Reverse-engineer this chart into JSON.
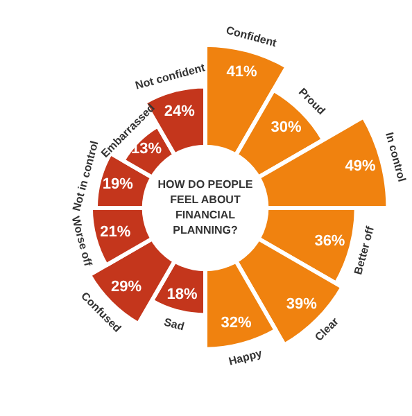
{
  "chart_data": {
    "type": "other",
    "title": "HOW DO PEOPLE FEEL ABOUT FINANCIAL PLANNING?",
    "categories": [
      "Confident",
      "Proud",
      "In control",
      "Better off",
      "Clear",
      "Happy",
      "Sad",
      "Confused",
      "Worse off",
      "Not in control",
      "Embarrassed",
      "Not confident"
    ],
    "values": [
      41,
      30,
      49,
      36,
      39,
      32,
      18,
      29,
      21,
      19,
      13,
      24
    ],
    "value_labels": [
      "41%",
      "30%",
      "49%",
      "36%",
      "39%",
      "32%",
      "18%",
      "29%",
      "21%",
      "19%",
      "13%",
      "24%"
    ],
    "colors": [
      "#f0820f",
      "#f0820f",
      "#f0820f",
      "#f0820f",
      "#f0820f",
      "#f0820f",
      "#c4361c",
      "#c4361c",
      "#c4361c",
      "#c4361c",
      "#c4361c",
      "#c4361c"
    ],
    "legend": false
  }
}
